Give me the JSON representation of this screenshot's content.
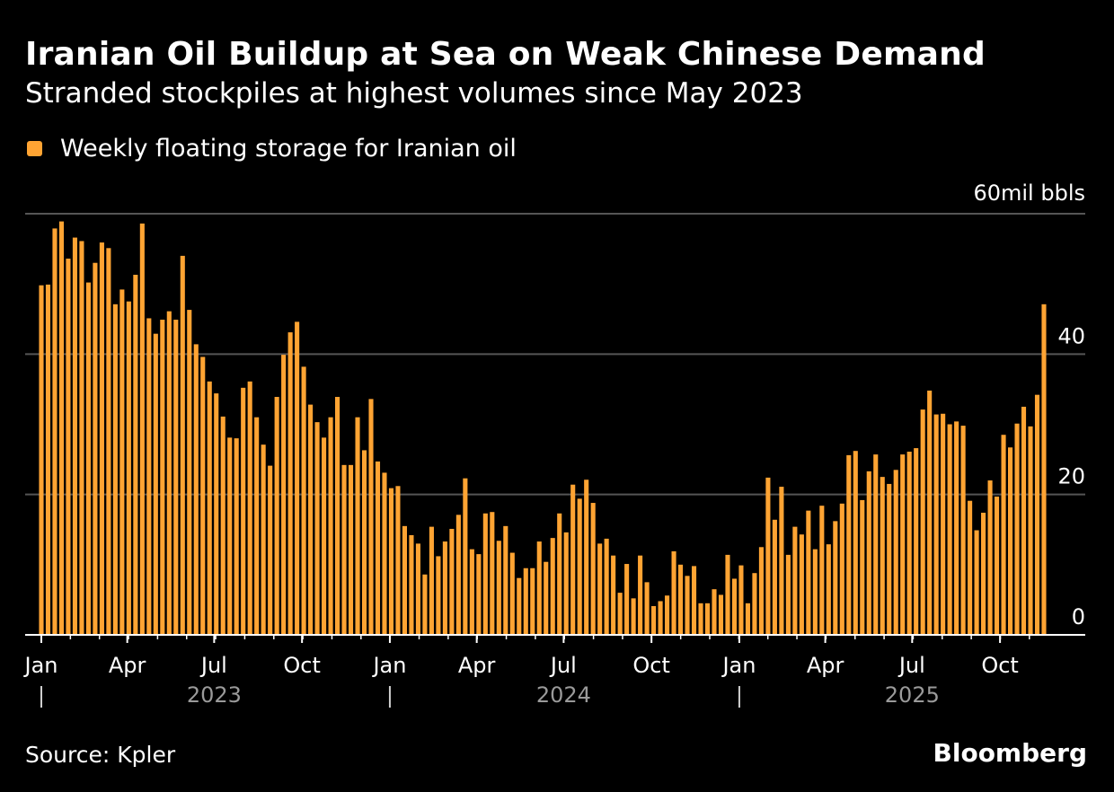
{
  "chart_data": {
    "type": "bar",
    "title": "Iranian Oil Buildup at Sea on Weak Chinese Demand",
    "subtitle": "Stranded stockpiles at highest volumes since May 2023",
    "legend": "Weekly floating storage for Iranian oil",
    "ylabel": "60mil bbls",
    "ylim": [
      0,
      60
    ],
    "yticks": [
      0,
      20,
      40
    ],
    "ytick_labels": [
      "0",
      "20",
      "40"
    ],
    "x_start": "2023-01-01",
    "x_end": "2025-11-16",
    "xticks": [
      {
        "label": "Jan",
        "date": "2023-01-01"
      },
      {
        "label": "Apr",
        "date": "2023-04-01"
      },
      {
        "label": "Jul",
        "date": "2023-07-01"
      },
      {
        "label": "Oct",
        "date": "2023-10-01"
      },
      {
        "label": "Jan",
        "date": "2024-01-01"
      },
      {
        "label": "Apr",
        "date": "2024-04-01"
      },
      {
        "label": "Jul",
        "date": "2024-07-01"
      },
      {
        "label": "Oct",
        "date": "2024-10-01"
      },
      {
        "label": "Jan",
        "date": "2025-01-01"
      },
      {
        "label": "Apr",
        "date": "2025-04-01"
      },
      {
        "label": "Jul",
        "date": "2025-07-01"
      },
      {
        "label": "Oct",
        "date": "2025-10-01"
      }
    ],
    "years": [
      {
        "label": "2023",
        "date": "2023-07-01",
        "divider": "2023-01-01"
      },
      {
        "label": "2024",
        "date": "2024-07-01",
        "divider": "2024-01-01"
      },
      {
        "label": "2025",
        "date": "2025-07-01",
        "divider": "2025-01-01"
      }
    ],
    "series": [
      {
        "color": "#ffa433",
        "values": [
          49.8,
          49.9,
          57.9,
          58.9,
          53.6,
          56.6,
          56.1,
          50.2,
          53.0,
          55.9,
          55.1,
          47.1,
          49.2,
          47.5,
          51.3,
          58.6,
          45.1,
          42.9,
          44.9,
          46.1,
          44.9,
          54.0,
          46.3,
          41.4,
          39.6,
          36.1,
          34.4,
          31.1,
          28.1,
          28.0,
          35.2,
          36.1,
          31.0,
          27.1,
          24.1,
          33.9,
          39.9,
          43.1,
          44.6,
          38.2,
          32.8,
          30.3,
          28.1,
          31.0,
          33.9,
          24.2,
          24.2,
          31.0,
          26.3,
          33.6,
          24.7,
          23.1,
          20.9,
          21.2,
          15.5,
          14.2,
          13.0,
          8.6,
          15.4,
          11.2,
          13.3,
          15.1,
          17.1,
          22.3,
          12.2,
          11.5,
          17.3,
          17.5,
          13.4,
          15.5,
          11.7,
          8.1,
          9.5,
          9.5,
          13.3,
          10.4,
          13.8,
          17.3,
          14.6,
          21.4,
          19.4,
          22.1,
          18.8,
          13.0,
          13.7,
          11.3,
          6.0,
          10.1,
          5.2,
          11.3,
          7.5,
          4.1,
          4.8,
          5.6,
          11.9,
          10.0,
          8.4,
          9.8,
          4.5,
          4.5,
          6.5,
          5.7,
          11.4,
          8.0,
          9.9,
          4.5,
          8.8,
          12.5,
          22.4,
          16.4,
          21.1,
          11.4,
          15.4,
          14.3,
          17.7,
          12.2,
          18.4,
          12.9,
          16.2,
          18.7,
          25.6,
          26.2,
          19.2,
          23.3,
          25.7,
          22.5,
          21.5,
          23.5,
          25.7,
          26.1,
          26.6,
          32.1,
          34.8,
          31.4,
          31.5,
          30.0,
          30.4,
          29.8,
          19.1,
          14.9,
          17.4,
          22.0,
          19.7,
          28.5,
          26.7,
          30.1,
          32.5,
          29.7,
          34.2,
          47.1
        ]
      }
    ]
  },
  "footer": {
    "source": "Source: Kpler",
    "brand": "Bloomberg"
  },
  "colors": {
    "bar": "#ffa433",
    "background": "#000000",
    "grid": "#555555",
    "axis": "#ffffff",
    "year_label": "#9a9a9a"
  }
}
